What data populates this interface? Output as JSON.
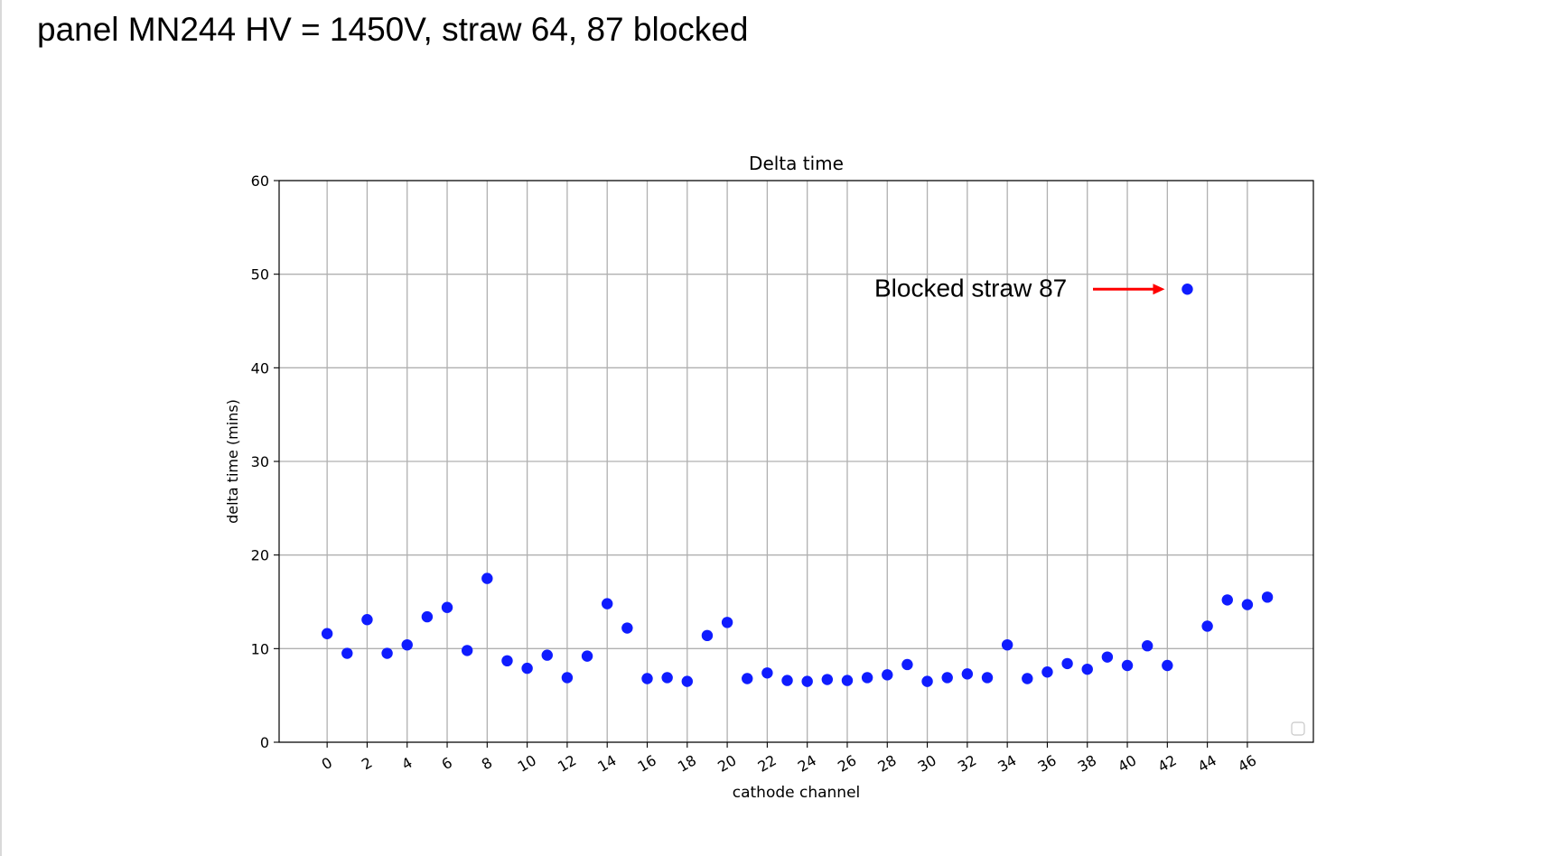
{
  "slide": {
    "title": "panel MN244 HV = 1450V, straw 64, 87 blocked"
  },
  "chart_data": {
    "type": "scatter",
    "title": "Delta time",
    "xlabel": "cathode channel",
    "ylabel": "delta time (mins)",
    "xlim": [
      -2.4,
      49.3
    ],
    "ylim": [
      0,
      60
    ],
    "xticks": [
      0,
      2,
      4,
      6,
      8,
      10,
      12,
      14,
      16,
      18,
      20,
      22,
      24,
      26,
      28,
      30,
      32,
      34,
      36,
      38,
      40,
      42,
      44,
      46
    ],
    "yticks": [
      0,
      10,
      20,
      30,
      40,
      50,
      60
    ],
    "grid": true,
    "marker_color": "#0f1cff",
    "x": [
      0,
      1,
      2,
      3,
      4,
      5,
      6,
      7,
      8,
      9,
      10,
      11,
      12,
      13,
      14,
      15,
      16,
      17,
      18,
      19,
      20,
      21,
      22,
      23,
      24,
      25,
      26,
      27,
      28,
      29,
      30,
      31,
      32,
      33,
      34,
      35,
      36,
      37,
      38,
      39,
      40,
      41,
      42,
      43,
      44,
      45,
      46,
      47
    ],
    "y": [
      11.6,
      9.5,
      13.1,
      9.5,
      10.4,
      13.4,
      14.4,
      9.8,
      17.5,
      8.7,
      7.9,
      9.3,
      6.9,
      9.2,
      14.8,
      12.2,
      6.8,
      6.9,
      6.5,
      11.4,
      12.8,
      6.8,
      7.4,
      6.6,
      6.5,
      6.7,
      6.6,
      6.9,
      7.2,
      8.3,
      6.5,
      6.9,
      7.3,
      6.9,
      10.4,
      6.8,
      7.5,
      8.4,
      7.8,
      9.1,
      8.2,
      10.3,
      8.2,
      48.4,
      12.4,
      15.2,
      14.7,
      15.5
    ],
    "annotation": {
      "text": "Blocked straw 87",
      "arrow_color": "#ff0000",
      "points_to": [
        43,
        48.4
      ]
    }
  }
}
